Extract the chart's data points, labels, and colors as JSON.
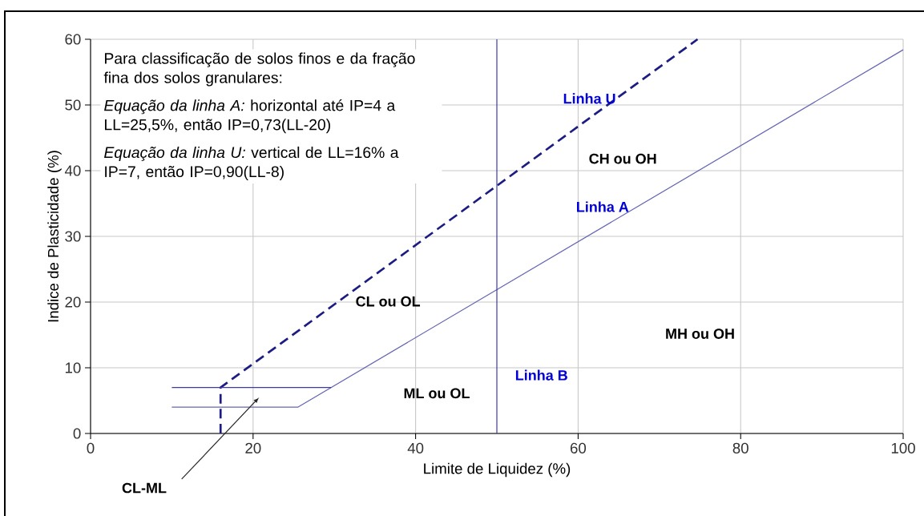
{
  "chart_data": {
    "type": "line",
    "xlabel": "Limite de Liquidez (%)",
    "ylabel": "Indice de Plasticidade (%)",
    "xlim": [
      0,
      100
    ],
    "ylim": [
      0,
      60
    ],
    "xticks": [
      0,
      20,
      40,
      60,
      80,
      100
    ],
    "yticks": [
      0,
      10,
      20,
      30,
      40,
      50,
      60
    ],
    "grid": true,
    "series": [
      {
        "name": "Linha A",
        "color": "#6464b4",
        "x": [
          10,
          25.5,
          100
        ],
        "values": [
          4,
          4,
          58.4
        ],
        "line_style": "solid"
      },
      {
        "name": "Linha U",
        "color": "#1c1c82",
        "x": [
          16,
          16,
          74.7
        ],
        "values": [
          0,
          7,
          60
        ],
        "line_style": "dashed"
      },
      {
        "name": "Linha B",
        "color": "#3a3aaa",
        "x": [
          50,
          50
        ],
        "values": [
          0,
          60
        ],
        "line_style": "solid"
      },
      {
        "color": "#3a3aaa",
        "x": [
          10,
          29.6
        ],
        "values": [
          7,
          7
        ],
        "line_style": "solid"
      }
    ],
    "annotations": [
      "Para classificação de solos finos e da fração fina dos solos granulares:",
      "*Equação da linha A:* horizontal até IP=4 a LL=25,5%, então IP=0,73(LL-20)",
      "*Equação da linha U:* vertical de LL=16% a IP=7, então IP=0,90(LL-8)",
      "CL-ML",
      "CH ou OH",
      "CL ou OL",
      "ML ou OL",
      "MH ou OH"
    ]
  }
}
